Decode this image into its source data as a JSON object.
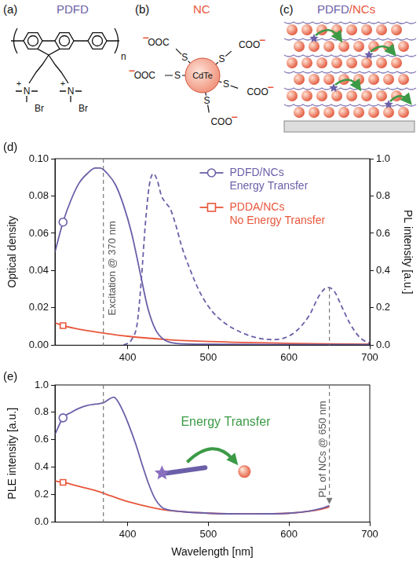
{
  "structures": [
    {
      "letter": "(a)",
      "title": "PDFD",
      "atom": "N",
      "charge": "+",
      "counterion": "Br",
      "repeat": "n"
    },
    {
      "letter": "(b)",
      "title": "NC",
      "core": "CdTe",
      "ligand_atom": "S",
      "ligand_end_left": "OOC",
      "ligand_end_right": "COO",
      "charge": "−"
    },
    {
      "letter": "(c)",
      "title": [
        "PDFD",
        "/NCs"
      ]
    }
  ],
  "chart_data": [
    {
      "letter": "(d)",
      "type": "line",
      "y_label": "Optical density",
      "y2_label": "PL intensity [a.u.]",
      "xlim": [
        310,
        700
      ],
      "xticks": [
        400,
        500,
        600,
        700
      ],
      "ylim": [
        0,
        0.1
      ],
      "yticks": [
        {
          "value": 0,
          "label": "0.00"
        },
        {
          "value": 0.02,
          "label": "0.02"
        },
        {
          "value": 0.04,
          "label": "0.04"
        },
        {
          "value": 0.06,
          "label": "0.06"
        },
        {
          "value": 0.08,
          "label": "0.08"
        },
        {
          "value": 0.1,
          "label": "0.10"
        }
      ],
      "y2lim": [
        0,
        1
      ],
      "y2ticks": [
        {
          "value": 0,
          "label": "0.0"
        },
        {
          "value": 0.2,
          "label": "0.2"
        },
        {
          "value": 0.4,
          "label": "0.4"
        },
        {
          "value": 0.6,
          "label": "0.6"
        },
        {
          "value": 0.8,
          "label": "0.8"
        },
        {
          "value": 1,
          "label": "1.0"
        }
      ],
      "grid": false,
      "legend": "upper right",
      "series": [
        {
          "name": "PDFD/NCs",
          "note": "Energy Transfer",
          "color": "#6b5fa8",
          "marker": "circle",
          "line_style": "solid",
          "x": [
            310,
            320,
            330,
            340,
            350,
            360,
            366,
            375,
            385,
            395,
            405,
            415,
            425,
            435,
            445,
            460,
            500,
            600,
            700
          ],
          "values": [
            0.05,
            0.066,
            0.078,
            0.087,
            0.092,
            0.095,
            0.095,
            0.092,
            0.086,
            0.075,
            0.06,
            0.04,
            0.02,
            0.008,
            0.003,
            0.001,
            0.0005,
            0.0003,
            0.0003
          ]
        },
        {
          "name": "PDDA/NCs",
          "note": "No Energy Transfer",
          "color": "#e8573c",
          "marker": "square",
          "line_style": "solid",
          "x": [
            310,
            320,
            340,
            370,
            400,
            450,
            500,
            600,
            700
          ],
          "values": [
            0.012,
            0.0105,
            0.0085,
            0.0065,
            0.0048,
            0.003,
            0.002,
            0.001,
            0.0005
          ]
        },
        {
          "color": "#6b5fa8",
          "line_style": "dashed",
          "axis": "y2",
          "x": [
            395,
            405,
            412,
            417,
            422,
            427,
            432,
            437,
            442,
            448,
            453,
            460,
            467,
            477,
            490,
            505,
            520,
            540,
            560,
            580,
            595,
            610,
            625,
            638,
            648,
            656,
            665,
            675,
            688,
            700
          ],
          "values": [
            0,
            0.03,
            0.12,
            0.35,
            0.65,
            0.86,
            0.92,
            0.88,
            0.8,
            0.76,
            0.73,
            0.64,
            0.53,
            0.41,
            0.28,
            0.18,
            0.12,
            0.07,
            0.04,
            0.03,
            0.04,
            0.08,
            0.16,
            0.27,
            0.31,
            0.29,
            0.21,
            0.12,
            0.04,
            0.01
          ]
        }
      ],
      "annotations": [
        {
          "text": "Excitation @ 370 nm",
          "x": 370
        }
      ]
    },
    {
      "letter": "(e)",
      "type": "line",
      "x_label": "Wavelength [nm]",
      "y_label": "PLE intensity [a.u.]",
      "xlim": [
        310,
        700
      ],
      "xticks": [
        400,
        500,
        600,
        700
      ],
      "ylim": [
        0,
        1
      ],
      "yticks": [
        {
          "value": 0,
          "label": "0.0"
        },
        {
          "value": 0.2,
          "label": "0.2"
        },
        {
          "value": 0.4,
          "label": "0.4"
        },
        {
          "value": 0.6,
          "label": "0.6"
        },
        {
          "value": 0.8,
          "label": "0.8"
        },
        {
          "value": 1,
          "label": "1.0"
        }
      ],
      "grid": false,
      "series": [
        {
          "color": "#6b5fa8",
          "marker": "circle",
          "line_style": "solid",
          "x": [
            310,
            320,
            330,
            340,
            350,
            360,
            370,
            378,
            383,
            388,
            395,
            402,
            410,
            418,
            426,
            434,
            442,
            450,
            470,
            500,
            550,
            600,
            625,
            640,
            650
          ],
          "values": [
            0.64,
            0.76,
            0.8,
            0.83,
            0.85,
            0.86,
            0.87,
            0.9,
            0.91,
            0.88,
            0.8,
            0.7,
            0.57,
            0.42,
            0.28,
            0.17,
            0.11,
            0.09,
            0.075,
            0.065,
            0.06,
            0.065,
            0.08,
            0.1,
            0.12
          ]
        },
        {
          "color": "#e8573c",
          "marker": "square",
          "line_style": "solid",
          "x": [
            310,
            320,
            340,
            360,
            380,
            400,
            420,
            440,
            460,
            500,
            550,
            600,
            625,
            640,
            650
          ],
          "values": [
            0.3,
            0.29,
            0.26,
            0.23,
            0.19,
            0.15,
            0.12,
            0.095,
            0.08,
            0.065,
            0.06,
            0.065,
            0.08,
            0.095,
            0.11
          ]
        }
      ],
      "annotations": [
        {
          "text": "Energy Transfer"
        },
        {
          "text": "PL of NCs @ 650 nm",
          "x": 650
        }
      ]
    }
  ]
}
